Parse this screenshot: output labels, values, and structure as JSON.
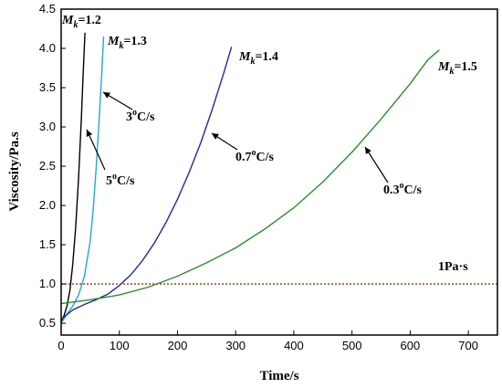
{
  "chart_data": {
    "type": "line",
    "xlabel": "Time/s",
    "ylabel": "Viscosity/Pa.s",
    "xlim": [
      0,
      750
    ],
    "ylim": [
      0.35,
      4.5
    ],
    "xticks": [
      0,
      100,
      200,
      300,
      400,
      500,
      600,
      700
    ],
    "yticks": [
      0.5,
      1.0,
      1.5,
      2.0,
      2.5,
      3.0,
      3.5,
      4.0,
      4.5
    ],
    "grid": false,
    "legend": "none",
    "series": [
      {
        "color": "#000000",
        "x": [
          0,
          5,
          10,
          15,
          20,
          25,
          30,
          35,
          38,
          41
        ],
        "y": [
          0.52,
          0.6,
          0.72,
          0.92,
          1.25,
          1.72,
          2.35,
          3.15,
          3.7,
          4.2
        ]
      },
      {
        "color": "#29a3d6",
        "x": [
          0,
          10,
          20,
          30,
          40,
          50,
          55,
          60,
          65,
          70,
          73
        ],
        "y": [
          0.5,
          0.62,
          0.72,
          0.86,
          1.1,
          1.55,
          1.95,
          2.45,
          3.05,
          3.7,
          4.15
        ]
      },
      {
        "color": "#1f2a9a",
        "x": [
          0,
          20,
          40,
          60,
          80,
          100,
          120,
          140,
          160,
          180,
          200,
          220,
          240,
          260,
          280,
          293
        ],
        "y": [
          0.55,
          0.67,
          0.74,
          0.8,
          0.87,
          0.98,
          1.12,
          1.3,
          1.52,
          1.78,
          2.08,
          2.42,
          2.8,
          3.23,
          3.7,
          4.02
        ]
      },
      {
        "color": "#2e8b2e",
        "x": [
          0,
          50,
          100,
          150,
          200,
          250,
          300,
          350,
          400,
          450,
          500,
          550,
          600,
          630,
          650
        ],
        "y": [
          0.75,
          0.8,
          0.86,
          0.96,
          1.1,
          1.27,
          1.46,
          1.7,
          1.97,
          2.3,
          2.68,
          3.1,
          3.55,
          3.85,
          3.98
        ]
      }
    ],
    "reference_line": {
      "y": 1.0,
      "label": "1Pa·s",
      "color": "#a0522d"
    },
    "annotations": [
      {
        "mk_prefix": "M",
        "mk_sub": "k",
        "value": "=1.2"
      },
      {
        "mk_prefix": "M",
        "mk_sub": "k",
        "value": "=1.3"
      },
      {
        "mk_prefix": "M",
        "mk_sub": "k",
        "value": "=1.4"
      },
      {
        "mk_prefix": "M",
        "mk_sub": "k",
        "value": "=1.5"
      }
    ],
    "rate_labels": [
      {
        "num": "3",
        "sup": "o",
        "unit": "C/s"
      },
      {
        "num": "5",
        "sup": "o",
        "unit": "C/s"
      },
      {
        "num": "0.7",
        "sup": "o",
        "unit": "C/s"
      },
      {
        "num": "0.3",
        "sup": "o",
        "unit": "C/s"
      }
    ]
  }
}
